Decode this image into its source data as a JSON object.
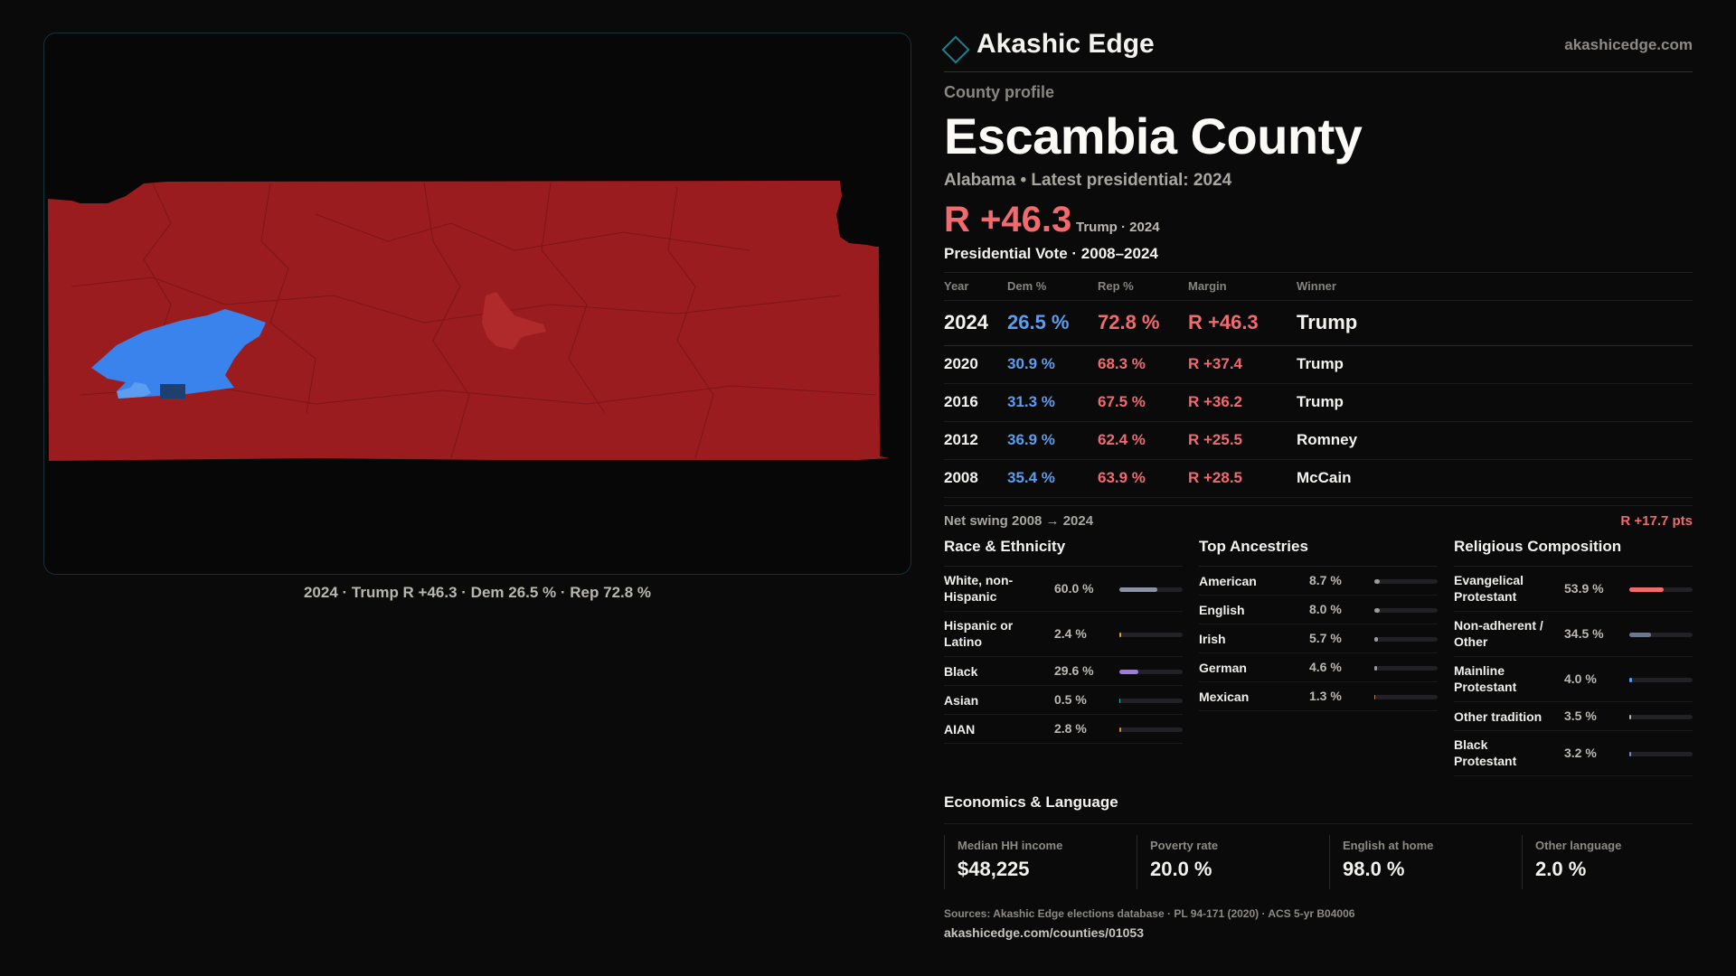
{
  "brand": {
    "name": "Akashic Edge",
    "domain": "akashicedge.com"
  },
  "profile": {
    "kicker": "County profile",
    "county": "Escambia County",
    "subline": "Alabama • Latest presidential: 2024",
    "margin": "R +46.3",
    "margin_note": "Trump · 2024"
  },
  "map": {
    "caption": "2024 · Trump R +46.3 · Dem 26.5 % · Rep 72.8 %",
    "colors": {
      "rep": "#9b1c1f",
      "dem": "#3a82ec",
      "dem_light": "#5b9df0",
      "dem_dark": "#1f3f6e",
      "rep_light": "#b02a2c"
    }
  },
  "votes": {
    "title": "Presidential Vote · 2008–2024",
    "headers": [
      "Year",
      "Dem %",
      "Rep %",
      "Margin",
      "Winner"
    ],
    "rows": [
      {
        "year": "2024",
        "dem": "26.5 %",
        "rep": "72.8 %",
        "margin": "R +46.3",
        "winner": "Trump"
      },
      {
        "year": "2020",
        "dem": "30.9 %",
        "rep": "68.3 %",
        "margin": "R +37.4",
        "winner": "Trump"
      },
      {
        "year": "2016",
        "dem": "31.3 %",
        "rep": "67.5 %",
        "margin": "R +36.2",
        "winner": "Trump"
      },
      {
        "year": "2012",
        "dem": "36.9 %",
        "rep": "62.4 %",
        "margin": "R +25.5",
        "winner": "Romney"
      },
      {
        "year": "2008",
        "dem": "35.4 %",
        "rep": "63.9 %",
        "margin": "R +28.5",
        "winner": "McCain"
      }
    ],
    "swing_label": "Net swing 2008 → 2024",
    "swing_value": "R +17.7 pts"
  },
  "race": {
    "title": "Race & Ethnicity",
    "items": [
      {
        "label": "White, non-Hispanic",
        "pct": "60.0 %",
        "value": 60.0,
        "color": "#8a93a6"
      },
      {
        "label": "Hispanic or Latino",
        "pct": "2.4 %",
        "value": 2.4,
        "color": "#e0a23a"
      },
      {
        "label": "Black",
        "pct": "29.6 %",
        "value": 29.6,
        "color": "#9b7be0"
      },
      {
        "label": "Asian",
        "pct": "0.5 %",
        "value": 0.5,
        "color": "#3fb6a8"
      },
      {
        "label": "AIAN",
        "pct": "2.8 %",
        "value": 2.8,
        "color": "#d9893a"
      }
    ]
  },
  "ancestry": {
    "title": "Top Ancestries",
    "items": [
      {
        "label": "American",
        "pct": "8.7 %",
        "value": 8.7,
        "color": "#9a9a9a"
      },
      {
        "label": "English",
        "pct": "8.0 %",
        "value": 8.0,
        "color": "#9a9a9a"
      },
      {
        "label": "Irish",
        "pct": "5.7 %",
        "value": 5.7,
        "color": "#9a9a9a"
      },
      {
        "label": "German",
        "pct": "4.6 %",
        "value": 4.6,
        "color": "#9a9a9a"
      },
      {
        "label": "Mexican",
        "pct": "1.3 %",
        "value": 1.3,
        "color": "#c27a3a"
      }
    ]
  },
  "religion": {
    "title": "Religious Composition",
    "items": [
      {
        "label": "Evangelical Protestant",
        "pct": "53.9 %",
        "value": 53.9,
        "color": "#f06a6e"
      },
      {
        "label": "Non-adherent / Other",
        "pct": "34.5 %",
        "value": 34.5,
        "color": "#6d7890"
      },
      {
        "label": "Mainline Protestant",
        "pct": "4.0 %",
        "value": 4.0,
        "color": "#5b9df0"
      },
      {
        "label": "Other tradition",
        "pct": "3.5 %",
        "value": 3.5,
        "color": "#b9b6b0"
      },
      {
        "label": "Black Protestant",
        "pct": "3.2 %",
        "value": 3.2,
        "color": "#7a8ad0"
      }
    ]
  },
  "economics": {
    "title": "Economics & Language",
    "stats": [
      {
        "label": "Median HH income",
        "value": "$48,225"
      },
      {
        "label": "Poverty rate",
        "value": "20.0 %"
      },
      {
        "label": "English at home",
        "value": "98.0 %"
      },
      {
        "label": "Other language",
        "value": "2.0 %"
      }
    ]
  },
  "footer": {
    "sources": "Sources: Akashic Edge elections database · PL 94-171 (2020) · ACS 5-yr B04006",
    "url": "akashicedge.com/counties/01053"
  }
}
